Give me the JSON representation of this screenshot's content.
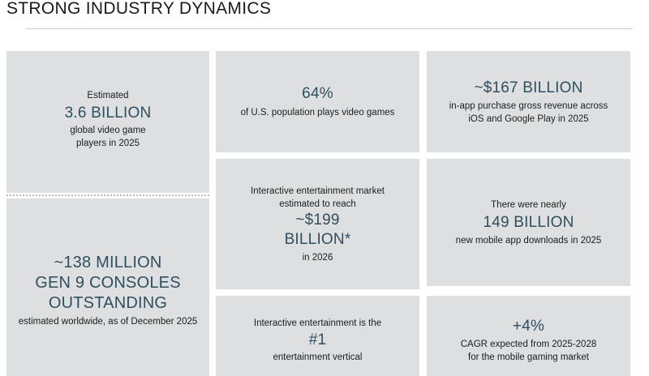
{
  "page": {
    "title": "STRONG INDUSTRY DYNAMICS"
  },
  "cards": {
    "players": {
      "pre": "Estimated",
      "value": "3.6 BILLION",
      "line1": "global video game",
      "line2": "players in 2025"
    },
    "population": {
      "value": "64%",
      "post": "of U.S. population plays video games"
    },
    "inapp": {
      "value": "~$167 BILLION",
      "line1": "in-app purchase gross revenue across",
      "line2": "iOS and Google Play in 2025"
    },
    "consoles": {
      "line1": "~138 MILLION",
      "line2": "GEN 9 CONSOLES",
      "line3": "OUTSTANDING",
      "post": "estimated worldwide, as of December 2025"
    },
    "market": {
      "pre1": "Interactive entertainment market",
      "pre2": "estimated to reach",
      "value1": "~$199",
      "value2": "BILLION*",
      "post": "in 2026"
    },
    "downloads": {
      "pre": "There were nearly",
      "value": "149 BILLION",
      "post": "new mobile app downloads in 2025"
    },
    "vertical": {
      "pre": "Interactive entertainment is the",
      "value": "#1",
      "post": "entertainment vertical"
    },
    "cagr": {
      "value": "+4%",
      "line1": "CAGR expected from 2025-2028",
      "line2": "for the mobile gaming market"
    }
  }
}
